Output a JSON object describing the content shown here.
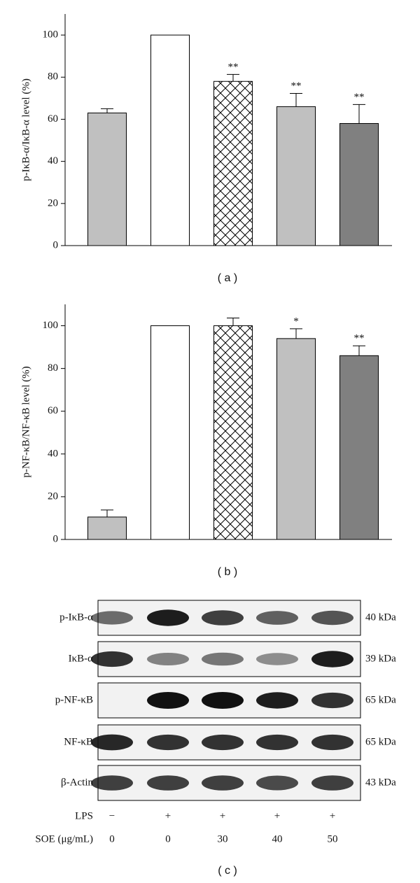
{
  "chart_data": [
    {
      "type": "bar",
      "ylabel": "p-IκB-α/IκB-α level (%)",
      "categories": [
        null,
        null,
        null,
        null,
        null
      ],
      "values": [
        63,
        100,
        78,
        66,
        58
      ],
      "errors": [
        2,
        null,
        3.3,
        6.3,
        9
      ],
      "colors": [
        "#c0c0c0",
        "#ffffff",
        "#ffffff",
        "#c0c0c0",
        "#808080"
      ],
      "hatch": [
        false,
        false,
        true,
        false,
        false
      ],
      "annotations": [
        null,
        null,
        "**",
        "**",
        "**"
      ],
      "ylim": [
        0,
        110
      ],
      "yticks": [
        0,
        20,
        40,
        60,
        80,
        100
      ],
      "caption": "( a )"
    },
    {
      "type": "bar",
      "ylabel": "p-NF-κB/NF-κB level (%)",
      "categories": [
        null,
        null,
        null,
        null,
        null
      ],
      "values": [
        10.5,
        100,
        100,
        94,
        86
      ],
      "errors": [
        3.3,
        null,
        3.6,
        4.6,
        4.6
      ],
      "colors": [
        "#c0c0c0",
        "#ffffff",
        "#ffffff",
        "#c0c0c0",
        "#808080"
      ],
      "hatch": [
        false,
        false,
        true,
        false,
        false
      ],
      "annotations": [
        null,
        null,
        null,
        "*",
        "**"
      ],
      "ylim": [
        0,
        110
      ],
      "yticks": [
        0,
        20,
        40,
        60,
        80,
        100
      ],
      "caption": "( b )"
    }
  ],
  "blot": {
    "rows": [
      {
        "label": "p-IκB-α",
        "size": "40 kDa"
      },
      {
        "label": "IκB-α",
        "size": "39 kDa"
      },
      {
        "label": "p-NF-κB",
        "size": "65 kDa"
      },
      {
        "label": "NF-κB",
        "size": "65 kDa"
      },
      {
        "label": "β-Actin",
        "size": "43 kDa"
      }
    ],
    "conditions": [
      {
        "label": "LPS",
        "values": [
          "−",
          "+",
          "+",
          "+",
          "+"
        ]
      },
      {
        "label": "SOE (μg/mL)",
        "values": [
          "0",
          "0",
          "30",
          "40",
          "50"
        ]
      }
    ],
    "caption": "( c )"
  }
}
